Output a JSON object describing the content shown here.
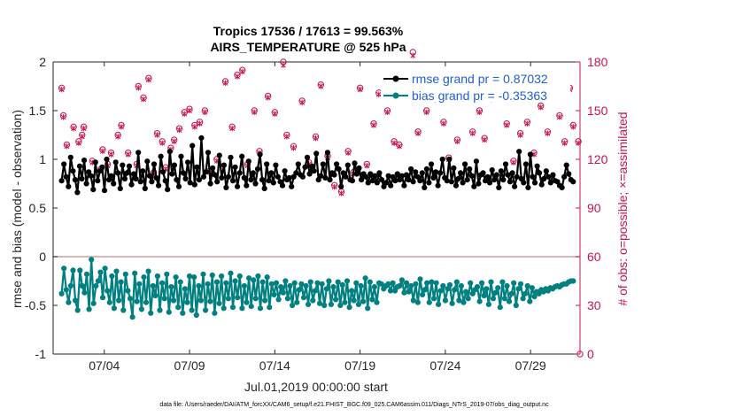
{
  "chart_data": {
    "type": "line",
    "title": "Tropics 17536 / 17613 = 99.563%",
    "subtitle": "AIRS_TEMPERATURE @ 525 hPa",
    "xlabel": "Jul.01,2019 00:00:00 start",
    "ylabel_left": "rmse and bias (model - observation)",
    "ylabel_right": "# of obs: o=possible; ×=assimilated",
    "ylim_left": [
      -1,
      2
    ],
    "ylim_right": [
      0,
      180
    ],
    "xlim_days": [
      0.5,
      31.4
    ],
    "yticks_left": [
      "-1",
      "-0.5",
      "0",
      "0.5",
      "1",
      "1.5",
      "2"
    ],
    "yticks_right": [
      "0",
      "30",
      "60",
      "90",
      "120",
      "150",
      "180"
    ],
    "xticks": [
      {
        "day": 3.5,
        "label": "07/04"
      },
      {
        "day": 8.5,
        "label": "07/09"
      },
      {
        "day": 13.5,
        "label": "07/14"
      },
      {
        "day": 18.5,
        "label": "07/19"
      },
      {
        "day": 23.5,
        "label": "07/24"
      },
      {
        "day": 28.5,
        "label": "07/29"
      }
    ],
    "legend": {
      "placement": "top-right",
      "entries": [
        {
          "label": "rmse grand pr =  0.87032",
          "color": "#000000"
        },
        {
          "label": "bias grand pr = -0.35363",
          "color": "#008080"
        }
      ]
    },
    "colors": {
      "rmse": "#000000",
      "bias": "#008080",
      "obs": "#c8144b",
      "zero_line": "#c8a0a0"
    },
    "series": [
      {
        "name": "rmse",
        "axis": "left",
        "values": [
          0.78,
          0.95,
          0.82,
          0.72,
          1.02,
          0.88,
          0.79,
          0.66,
          0.93,
          0.8,
          0.99,
          0.75,
          0.87,
          0.83,
          0.69,
          0.97,
          0.78,
          0.88,
          0.92,
          0.68,
          1.0,
          0.79,
          0.83,
          0.75,
          0.97,
          0.86,
          0.7,
          0.94,
          0.8,
          0.86,
          0.93,
          0.74,
          0.85,
          0.8,
          1.07,
          0.77,
          0.88,
          0.7,
          0.98,
          0.83,
          0.77,
          0.95,
          0.81,
          0.73,
          1.03,
          0.87,
          0.78,
          0.69,
          1.08,
          0.85,
          0.94,
          0.79,
          0.72,
          1.03,
          0.86,
          0.8,
          0.97,
          0.76,
          1.14,
          0.74,
          0.92,
          0.79,
          1.22,
          0.82,
          0.87,
          1.07,
          0.75,
          0.91,
          0.84,
          0.77,
          1.04,
          0.81,
          0.94,
          0.71,
          0.82,
          1.02,
          0.78,
          0.92,
          0.72,
          0.86,
          1.03,
          0.81,
          0.73,
          0.98,
          0.79,
          0.86,
          0.75,
          0.9,
          1.05,
          0.79,
          0.7,
          0.95,
          0.78,
          0.86,
          0.76,
          0.94,
          0.82,
          0.77,
          0.73,
          0.88,
          0.79,
          0.81,
          0.72,
          0.82,
          0.86,
          0.95,
          0.84,
          0.82,
          0.92,
          1.02,
          0.85,
          0.93,
          0.88,
          1.06,
          0.79,
          0.83,
          0.95,
          0.81,
          1.07,
          0.79,
          0.86,
          0.84,
          0.95,
          0.9,
          0.72,
          0.86,
          0.82,
          0.94,
          0.79,
          0.78,
          0.96,
          0.85,
          0.91,
          0.79,
          0.85,
          0.82,
          0.76,
          0.85,
          0.78,
          0.83,
          0.76,
          0.86,
          0.79,
          0.72,
          0.76,
          0.83,
          0.73,
          0.82,
          0.78,
          0.85,
          0.79,
          0.83,
          0.73,
          0.84,
          0.79,
          0.9,
          0.77,
          0.87,
          0.82,
          0.78,
          0.86,
          0.71,
          0.9,
          0.76,
          0.95,
          0.81,
          0.87,
          0.73,
          0.86,
          1.0,
          0.81,
          0.78,
          1.0,
          0.77,
          0.91,
          0.73,
          0.8,
          0.86,
          0.76,
          0.95,
          0.79,
          0.9,
          0.83,
          0.72,
          0.98,
          0.75,
          0.84,
          0.86,
          0.78,
          0.82,
          0.76,
          0.89,
          0.79,
          0.84,
          0.71,
          0.88,
          0.79,
          0.95,
          0.84,
          0.77,
          0.86,
          0.72,
          0.82,
          1.08,
          0.8,
          0.76,
          0.95,
          0.71,
          1.05,
          0.82,
          0.76,
          0.93,
          0.86,
          0.74,
          0.8,
          0.88,
          0.82,
          0.76,
          0.84,
          0.78,
          0.77,
          0.73,
          0.71,
          0.82,
          0.94,
          0.85,
          0.79,
          0.77
        ]
      },
      {
        "name": "bias",
        "axis": "left",
        "values": [
          -0.38,
          -0.12,
          -0.34,
          -0.47,
          -0.3,
          -0.14,
          -0.45,
          -0.55,
          -0.14,
          -0.3,
          -0.37,
          -0.18,
          -0.54,
          -0.03,
          -0.48,
          -0.3,
          -0.25,
          -0.16,
          -0.42,
          -0.12,
          -0.35,
          -0.47,
          -0.2,
          -0.53,
          -0.15,
          -0.45,
          -0.26,
          -0.55,
          -0.18,
          -0.35,
          -0.43,
          -0.62,
          -0.17,
          -0.46,
          -0.28,
          -0.54,
          -0.21,
          -0.47,
          -0.15,
          -0.58,
          -0.3,
          -0.4,
          -0.2,
          -0.55,
          -0.27,
          -0.43,
          -0.18,
          -0.57,
          -0.31,
          -0.45,
          -0.21,
          -0.52,
          -0.26,
          -0.58,
          -0.33,
          -0.47,
          -0.2,
          -0.55,
          -0.21,
          -0.6,
          -0.3,
          -0.45,
          -0.18,
          -0.55,
          -0.28,
          -0.46,
          -0.19,
          -0.58,
          -0.26,
          -0.48,
          -0.2,
          -0.53,
          -0.27,
          -0.43,
          -0.17,
          -0.52,
          -0.25,
          -0.42,
          -0.2,
          -0.53,
          -0.3,
          -0.47,
          -0.22,
          -0.51,
          -0.24,
          -0.43,
          -0.2,
          -0.53,
          -0.26,
          -0.45,
          -0.21,
          -0.52,
          -0.28,
          -0.39,
          -0.27,
          -0.44,
          -0.31,
          -0.37,
          -0.25,
          -0.43,
          -0.3,
          -0.5,
          -0.27,
          -0.47,
          -0.34,
          -0.28,
          -0.42,
          -0.3,
          -0.49,
          -0.26,
          -0.45,
          -0.35,
          -0.27,
          -0.48,
          -0.28,
          -0.5,
          -0.33,
          -0.25,
          -0.49,
          -0.31,
          -0.44,
          -0.26,
          -0.5,
          -0.29,
          -0.47,
          -0.25,
          -0.52,
          -0.35,
          -0.45,
          -0.27,
          -0.49,
          -0.3,
          -0.46,
          -0.22,
          -0.53,
          -0.26,
          -0.44,
          -0.31,
          -0.47,
          -0.27,
          -0.28,
          -0.33,
          -0.3,
          -0.28,
          -0.35,
          -0.27,
          -0.35,
          -0.31,
          -0.3,
          -0.24,
          -0.37,
          -0.27,
          -0.36,
          -0.3,
          -0.45,
          -0.28,
          -0.47,
          -0.23,
          -0.39,
          -0.34,
          -0.27,
          -0.47,
          -0.26,
          -0.43,
          -0.27,
          -0.49,
          -0.35,
          -0.3,
          -0.45,
          -0.33,
          -0.29,
          -0.48,
          -0.34,
          -0.26,
          -0.45,
          -0.3,
          -0.47,
          -0.36,
          -0.43,
          -0.27,
          -0.38,
          -0.34,
          -0.31,
          -0.46,
          -0.27,
          -0.4,
          -0.33,
          -0.49,
          -0.26,
          -0.43,
          -0.37,
          -0.32,
          -0.52,
          -0.26,
          -0.43,
          -0.3,
          -0.46,
          -0.38,
          -0.27,
          -0.5,
          -0.33,
          -0.28,
          -0.43,
          -0.38,
          -0.3,
          -0.46,
          -0.32,
          -0.41,
          -0.36,
          -0.38,
          -0.34,
          -0.36,
          -0.33,
          -0.35,
          -0.32,
          -0.33,
          -0.31,
          -0.3,
          -0.31,
          -0.29,
          -0.28,
          -0.28,
          -0.26,
          -0.25,
          -0.25
        ]
      },
      {
        "name": "obs_possible",
        "axis": "right",
        "marker": "o",
        "points": [
          [
            1.0,
            164
          ],
          [
            1.1,
            147
          ],
          [
            1.3,
            129
          ],
          [
            1.7,
            140
          ],
          [
            2.0,
            131
          ],
          [
            2.2,
            135
          ],
          [
            2.3,
            140
          ],
          [
            2.8,
            119
          ],
          [
            3.3,
            114
          ],
          [
            3.4,
            126
          ],
          [
            3.7,
            117
          ],
          [
            3.9,
            124
          ],
          [
            4.3,
            135
          ],
          [
            4.5,
            141
          ],
          [
            4.9,
            124
          ],
          [
            5.4,
            117
          ],
          [
            5.5,
            165
          ],
          [
            5.8,
            158
          ],
          [
            6.1,
            170
          ],
          [
            6.4,
            112
          ],
          [
            6.6,
            136
          ],
          [
            6.9,
            131
          ],
          [
            7.1,
            115
          ],
          [
            7.4,
            127
          ],
          [
            7.6,
            132
          ],
          [
            7.9,
            139
          ],
          [
            8.2,
            149
          ],
          [
            8.5,
            151
          ],
          [
            8.8,
            141
          ],
          [
            9.1,
            143
          ],
          [
            9.4,
            150
          ],
          [
            9.7,
            113
          ],
          [
            10.1,
            120
          ],
          [
            10.6,
            168
          ],
          [
            11.0,
            140
          ],
          [
            11.3,
            172
          ],
          [
            11.6,
            175
          ],
          [
            11.9,
            117
          ],
          [
            12.3,
            150
          ],
          [
            12.6,
            125
          ],
          [
            13.1,
            159
          ],
          [
            13.5,
            149
          ],
          [
            14.0,
            180
          ],
          [
            14.2,
            135
          ],
          [
            14.6,
            128
          ],
          [
            15.1,
            156
          ],
          [
            15.5,
            118
          ],
          [
            15.9,
            134
          ],
          [
            16.2,
            166
          ],
          [
            16.6,
            122
          ],
          [
            17.0,
            104
          ],
          [
            17.4,
            100
          ],
          [
            17.8,
            125
          ],
          [
            18.1,
            112
          ],
          [
            18.5,
            164
          ],
          [
            18.9,
            117
          ],
          [
            19.3,
            142
          ],
          [
            19.6,
            161
          ],
          [
            20.1,
            150
          ],
          [
            20.5,
            131
          ],
          [
            20.8,
            129
          ],
          [
            21.2,
            165
          ],
          [
            21.6,
            186
          ],
          [
            21.9,
            137
          ],
          [
            22.4,
            150
          ],
          [
            22.9,
            158
          ],
          [
            23.4,
            143
          ],
          [
            23.7,
            121
          ],
          [
            24.2,
            132
          ],
          [
            24.6,
            159
          ],
          [
            25.1,
            137
          ],
          [
            25.5,
            150
          ],
          [
            25.8,
            133
          ],
          [
            26.2,
            158
          ],
          [
            26.7,
            159
          ],
          [
            27.1,
            142
          ],
          [
            27.5,
            119
          ],
          [
            27.9,
            136
          ],
          [
            28.3,
            143
          ],
          [
            28.7,
            124
          ],
          [
            29.1,
            153
          ],
          [
            29.5,
            137
          ],
          [
            29.9,
            171
          ],
          [
            30.2,
            147
          ],
          [
            30.5,
            131
          ],
          [
            30.8,
            164
          ],
          [
            31.0,
            141
          ],
          [
            31.3,
            131
          ],
          [
            31.4,
            0
          ]
        ]
      },
      {
        "name": "obs_assimilated",
        "axis": "right",
        "marker": "x",
        "points": [
          [
            1.0,
            163
          ],
          [
            1.1,
            146
          ],
          [
            1.3,
            128
          ],
          [
            1.7,
            139
          ],
          [
            2.0,
            130
          ],
          [
            2.2,
            134
          ],
          [
            2.3,
            139
          ],
          [
            2.8,
            118
          ],
          [
            3.3,
            113
          ],
          [
            3.4,
            125
          ],
          [
            3.7,
            116
          ],
          [
            3.9,
            123
          ],
          [
            4.3,
            134
          ],
          [
            4.5,
            140
          ],
          [
            4.9,
            123
          ],
          [
            5.4,
            116
          ],
          [
            5.5,
            164
          ],
          [
            5.8,
            157
          ],
          [
            6.1,
            169
          ],
          [
            6.4,
            111
          ],
          [
            6.6,
            135
          ],
          [
            6.9,
            130
          ],
          [
            7.1,
            114
          ],
          [
            7.4,
            126
          ],
          [
            7.6,
            131
          ],
          [
            7.9,
            138
          ],
          [
            8.2,
            148
          ],
          [
            8.5,
            150
          ],
          [
            8.8,
            140
          ],
          [
            9.1,
            142
          ],
          [
            9.4,
            149
          ],
          [
            9.7,
            112
          ],
          [
            10.1,
            119
          ],
          [
            10.6,
            167
          ],
          [
            11.0,
            139
          ],
          [
            11.3,
            171
          ],
          [
            11.6,
            174
          ],
          [
            11.9,
            116
          ],
          [
            12.3,
            149
          ],
          [
            12.6,
            124
          ],
          [
            13.1,
            158
          ],
          [
            13.5,
            148
          ],
          [
            14.0,
            178
          ],
          [
            14.2,
            134
          ],
          [
            14.6,
            127
          ],
          [
            15.1,
            155
          ],
          [
            15.5,
            117
          ],
          [
            15.9,
            133
          ],
          [
            16.2,
            165
          ],
          [
            16.6,
            121
          ],
          [
            17.0,
            103
          ],
          [
            17.4,
            99
          ],
          [
            17.8,
            124
          ],
          [
            18.1,
            111
          ],
          [
            18.5,
            163
          ],
          [
            18.9,
            116
          ],
          [
            19.3,
            141
          ],
          [
            19.6,
            160
          ],
          [
            20.1,
            149
          ],
          [
            20.5,
            130
          ],
          [
            20.8,
            128
          ],
          [
            21.2,
            164
          ],
          [
            21.6,
            184
          ],
          [
            21.9,
            136
          ],
          [
            22.4,
            149
          ],
          [
            22.9,
            157
          ],
          [
            23.4,
            142
          ],
          [
            23.7,
            120
          ],
          [
            24.2,
            131
          ],
          [
            24.6,
            158
          ],
          [
            25.1,
            136
          ],
          [
            25.5,
            149
          ],
          [
            25.8,
            132
          ],
          [
            26.2,
            157
          ],
          [
            26.7,
            158
          ],
          [
            27.1,
            141
          ],
          [
            27.5,
            118
          ],
          [
            27.9,
            135
          ],
          [
            28.3,
            142
          ],
          [
            28.7,
            123
          ],
          [
            29.1,
            152
          ],
          [
            29.5,
            136
          ],
          [
            29.9,
            170
          ],
          [
            30.2,
            146
          ],
          [
            30.5,
            130
          ],
          [
            30.8,
            163
          ],
          [
            31.0,
            140
          ],
          [
            31.3,
            130
          ]
        ]
      }
    ],
    "footnote": "data file: /Users/raeder/DAI/ATM_forcXX/CAM6_setup/f.e21.FHIST_BGC.f09_025.CAM6assim.011/Diags_NTrS_2019-07/obs_diag_output.nc"
  }
}
